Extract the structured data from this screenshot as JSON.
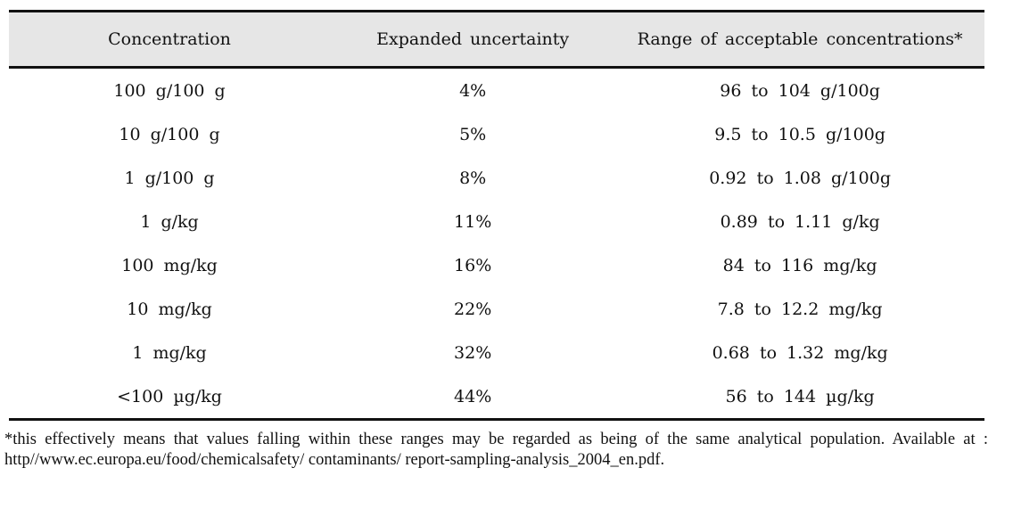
{
  "table": {
    "header": [
      "Concentration",
      "Expanded uncertainty",
      "Range of acceptable concentrations*"
    ],
    "rows": [
      [
        "100 g/100 g",
        "4%",
        "96 to 104 g/100g"
      ],
      [
        "10 g/100 g",
        "5%",
        "9.5 to 10.5 g/100g"
      ],
      [
        "1 g/100 g",
        "8%",
        "0.92 to 1.08 g/100g"
      ],
      [
        "1 g/kg",
        "11%",
        "0.89 to 1.11 g/kg"
      ],
      [
        "100 mg/kg",
        "16%",
        "84 to 116 mg/kg"
      ],
      [
        "10 mg/kg",
        "22%",
        "7.8 to 12.2 mg/kg"
      ],
      [
        "1 mg/kg",
        "32%",
        "0.68 to 1.32 mg/kg"
      ],
      [
        "<100 µg/kg",
        "44%",
        "56 to 144 µg/kg"
      ]
    ]
  },
  "footnote": "*this effectively means that values falling within these ranges may be regarded as being of the same analytical population. Available at : http//www.ec.europa.eu/food/chemicalsafety/ contaminants/ report-sampling-analysis_2004_en.pdf."
}
